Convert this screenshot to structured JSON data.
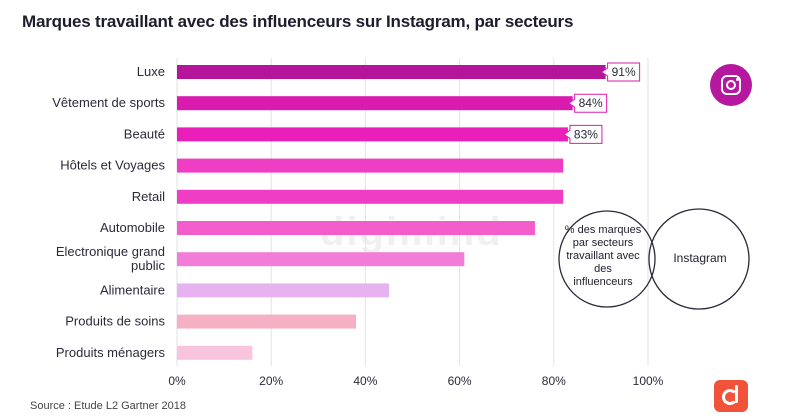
{
  "chart_data": {
    "type": "bar",
    "orientation": "horizontal",
    "title": "Marques travaillant avec des influenceurs sur Instagram, par secteurs",
    "categories": [
      "Luxe",
      "Vêtement de sports",
      "Beauté",
      "Hôtels et Voyages",
      "Retail",
      "Automobile",
      "Electronique grand public",
      "Alimentaire",
      "Produits de soins",
      "Produits ménagers"
    ],
    "category_lines": [
      [
        "Luxe"
      ],
      [
        "Vêtement de sports"
      ],
      [
        "Beauté"
      ],
      [
        "Hôtels et Voyages"
      ],
      [
        "Retail"
      ],
      [
        "Automobile"
      ],
      [
        "Electronique grand",
        "public"
      ],
      [
        "Alimentaire"
      ],
      [
        "Produits de soins"
      ],
      [
        "Produits ménagers"
      ]
    ],
    "values": [
      91,
      84,
      83,
      82,
      82,
      76,
      61,
      45,
      38,
      16
    ],
    "value_labels": [
      "91%",
      "84%",
      "83%",
      "",
      "",
      "",
      "",
      "",
      "",
      ""
    ],
    "bar_colors": [
      "#b5159a",
      "#d91bb0",
      "#ea1eb9",
      "#ef3ec3",
      "#ef3ec3",
      "#f25ccb",
      "#f27dd8",
      "#e6b3f0",
      "#f5b0c4",
      "#f8c4de"
    ],
    "xlim": [
      0,
      100
    ],
    "xticks": [
      0,
      20,
      40,
      60,
      80,
      100
    ],
    "xtick_labels": [
      "0%",
      "20%",
      "40%",
      "60%",
      "80%",
      "100%"
    ],
    "grid": true,
    "xlabel": "",
    "ylabel": ""
  },
  "legend": {
    "left_circle_text": "% des marques par secteurs travaillant avec des influenceurs",
    "right_circle_text": "Instagram"
  },
  "source": "Source : Etude L2 Gartner 2018",
  "watermark": "digimind",
  "icons": [
    "instagram-icon",
    "digimind-logo-icon"
  ]
}
